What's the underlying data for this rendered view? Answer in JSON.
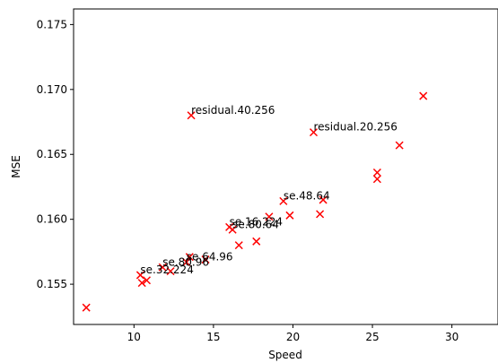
{
  "chart_data": {
    "type": "scatter",
    "title": "",
    "xlabel": "Speed",
    "ylabel": "MSE",
    "xlim": [
      6.2,
      32.9
    ],
    "ylim": [
      0.1519,
      0.1762
    ],
    "xticks": [
      10,
      15,
      20,
      25,
      30
    ],
    "yticks": [
      0.155,
      0.16,
      0.165,
      0.17,
      0.175
    ],
    "xtick_labels": [
      "10",
      "15",
      "20",
      "25",
      "30"
    ],
    "ytick_labels": [
      "0.155",
      "0.160",
      "0.165",
      "0.170",
      "0.175"
    ],
    "grid": false,
    "legend": false,
    "marker": "x",
    "color": "#ff0000",
    "points": [
      {
        "x": 7.0,
        "y": 0.1532
      },
      {
        "x": 10.4,
        "y": 0.1557
      },
      {
        "x": 10.5,
        "y": 0.1551
      },
      {
        "x": 10.8,
        "y": 0.1553
      },
      {
        "x": 11.8,
        "y": 0.1563
      },
      {
        "x": 12.3,
        "y": 0.156
      },
      {
        "x": 13.3,
        "y": 0.1567
      },
      {
        "x": 13.5,
        "y": 0.1571
      },
      {
        "x": 14.5,
        "y": 0.1569
      },
      {
        "x": 16.0,
        "y": 0.1594
      },
      {
        "x": 16.2,
        "y": 0.1592
      },
      {
        "x": 16.6,
        "y": 0.158
      },
      {
        "x": 17.7,
        "y": 0.1583
      },
      {
        "x": 18.5,
        "y": 0.1602
      },
      {
        "x": 19.4,
        "y": 0.1614
      },
      {
        "x": 19.8,
        "y": 0.1603
      },
      {
        "x": 21.7,
        "y": 0.1604
      },
      {
        "x": 21.9,
        "y": 0.1615
      },
      {
        "x": 13.6,
        "y": 0.168
      },
      {
        "x": 21.3,
        "y": 0.1667
      },
      {
        "x": 25.3,
        "y": 0.1636
      },
      {
        "x": 25.3,
        "y": 0.1631
      },
      {
        "x": 26.7,
        "y": 0.1657
      },
      {
        "x": 28.2,
        "y": 0.1695
      }
    ],
    "annotations": [
      {
        "text": "residual.40.256",
        "x": 13.6,
        "y": 0.168
      },
      {
        "text": "residual.20.256",
        "x": 21.3,
        "y": 0.1667
      },
      {
        "text": "se.48.64",
        "x": 19.4,
        "y": 0.1614
      },
      {
        "text": "se.16.224",
        "x": 16.0,
        "y": 0.1594
      },
      {
        "text": "se.80.64",
        "x": 16.2,
        "y": 0.1592
      },
      {
        "text": "se.64.96",
        "x": 13.3,
        "y": 0.1567
      },
      {
        "text": "se.80.96",
        "x": 11.8,
        "y": 0.1563
      },
      {
        "text": "se.32.224",
        "x": 10.4,
        "y": 0.1557
      }
    ]
  }
}
